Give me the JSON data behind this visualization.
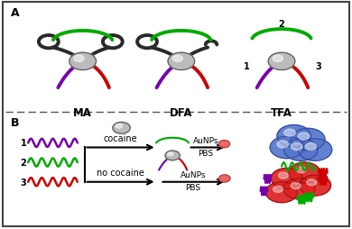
{
  "colors": {
    "dark": "#2a2a2a",
    "green": "#00aa00",
    "red": "#cc0000",
    "purple": "#7700aa",
    "gray_sphere": "#bbbbbb",
    "gray_highlight": "#eeeeee",
    "gray_dark": "#555555",
    "blue_nps": "#5577cc",
    "blue_nps_edge": "#334499",
    "red_nps": "#dd2222",
    "red_nps_edge": "#991111",
    "pink_np": "#ee6666",
    "background": "#ffffff",
    "border": "#444444",
    "dashed_line": "#555555"
  },
  "labels": {
    "A": "A",
    "B": "B",
    "MA": "MA",
    "DFA": "DFA",
    "TFA": "TFA",
    "cocaine": "cocaine",
    "no_cocaine": "no cocaine",
    "AuNPs": "AuNPs",
    "PBS": "PBS"
  }
}
